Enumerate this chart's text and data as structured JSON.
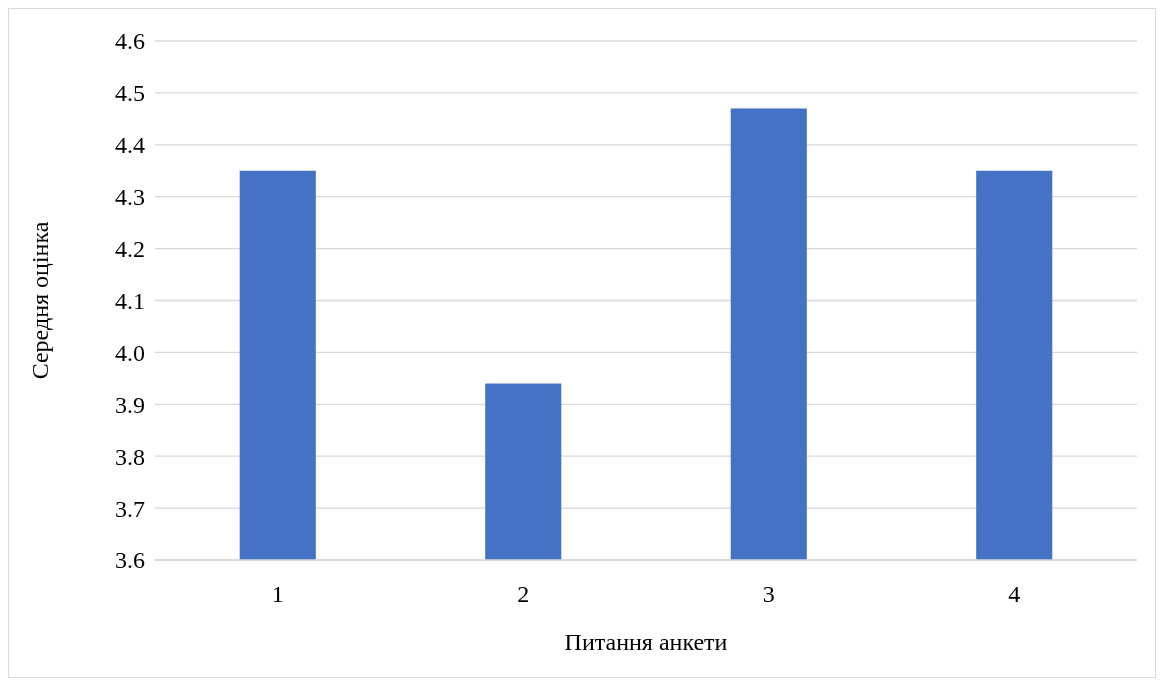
{
  "chart_data": {
    "type": "bar",
    "xlabel": "Питання анкети",
    "ylabel": "Середня оцінка",
    "categories": [
      "1",
      "2",
      "3",
      "4"
    ],
    "values": [
      4.35,
      3.94,
      4.47,
      4.35
    ],
    "color": "#4472c4",
    "ylim": [
      3.6,
      4.6
    ],
    "yticks": [
      3.6,
      3.7,
      3.8,
      3.9,
      {
        "value": 4,
        "label": "4.0"
      },
      4.1,
      4.2,
      4.3,
      4.4,
      4.5,
      4.6
    ],
    "grid": "y"
  }
}
